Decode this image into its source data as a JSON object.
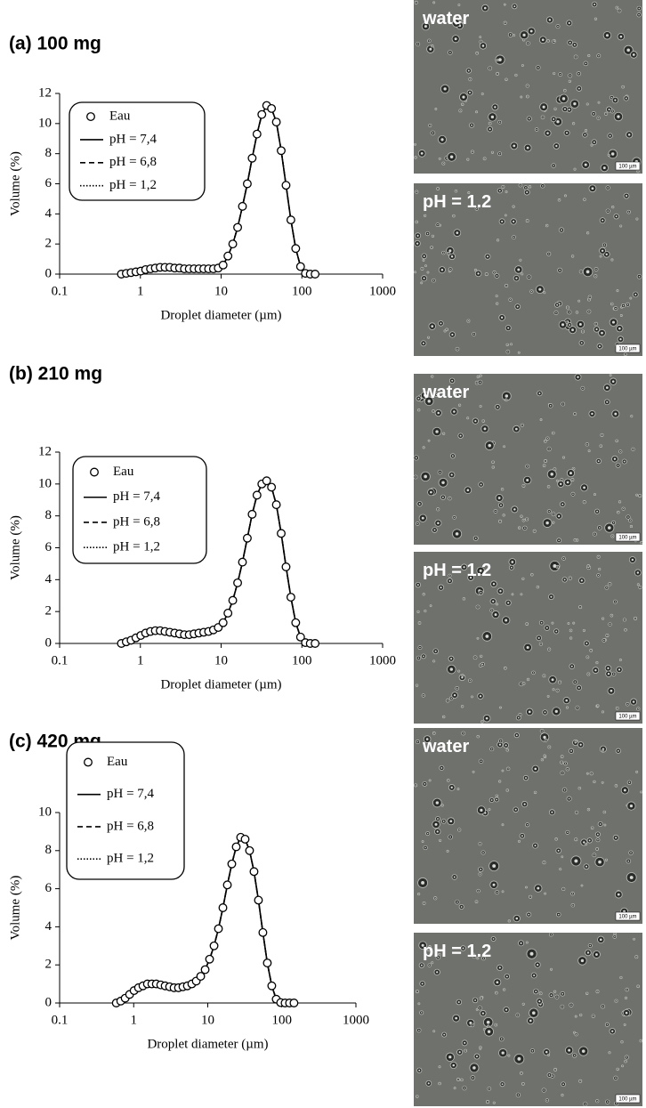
{
  "chart_data": [
    {
      "type": "line",
      "title": "(a) 100 mg",
      "x_label": "Droplet diameter (µm)",
      "y_label": "Volume (%)",
      "log_x": true,
      "legend": "upper left",
      "xlim": [
        0.1,
        1000
      ],
      "xticks": [
        0.1,
        1,
        10,
        100,
        1000
      ],
      "ylim": [
        0,
        12
      ],
      "yticks": [
        0,
        2,
        4,
        6,
        8,
        10,
        12
      ],
      "x": [
        0.582,
        0.669,
        0.767,
        0.881,
        1.012,
        1.162,
        1.334,
        1.531,
        1.758,
        2.018,
        2.317,
        2.66,
        3.054,
        3.506,
        4.025,
        4.621,
        5.305,
        6.09,
        6.992,
        8.027,
        9.215,
        10.58,
        12.15,
        13.94,
        16.01,
        18.38,
        21.1,
        24.22,
        27.81,
        31.93,
        36.65,
        42.08,
        48.31,
        55.46,
        63.67,
        73.1,
        83.93,
        96.35,
        110.6,
        127,
        145.8
      ],
      "series": [
        {
          "name": "Eau",
          "color": "#000000",
          "marker": "circle",
          "line_style": "none",
          "values": [
            0,
            0.05,
            0.1,
            0.15,
            0.2,
            0.3,
            0.35,
            0.4,
            0.45,
            0.45,
            0.45,
            0.4,
            0.4,
            0.35,
            0.35,
            0.35,
            0.35,
            0.35,
            0.35,
            0.35,
            0.4,
            0.6,
            1.2,
            2.0,
            3.1,
            4.5,
            6.0,
            7.7,
            9.3,
            10.6,
            11.2,
            11.0,
            10.1,
            8.2,
            5.9,
            3.6,
            1.7,
            0.5,
            0.05,
            0,
            0
          ]
        },
        {
          "name": "pH = 7,4",
          "color": "#000000",
          "marker": "none",
          "line_style": "solid",
          "values": [
            0,
            0.05,
            0.1,
            0.15,
            0.2,
            0.3,
            0.35,
            0.4,
            0.45,
            0.45,
            0.45,
            0.4,
            0.4,
            0.35,
            0.35,
            0.35,
            0.35,
            0.35,
            0.35,
            0.35,
            0.4,
            0.6,
            1.2,
            2.0,
            3.1,
            4.5,
            6.0,
            7.7,
            9.3,
            10.6,
            11.2,
            11.0,
            10.1,
            8.2,
            5.9,
            3.6,
            1.7,
            0.5,
            0.05,
            0,
            0
          ]
        },
        {
          "name": "pH = 6,8",
          "color": "#000000",
          "marker": "none",
          "line_style": "dashed",
          "values": [
            0,
            0.05,
            0.1,
            0.15,
            0.2,
            0.3,
            0.35,
            0.4,
            0.45,
            0.45,
            0.45,
            0.4,
            0.4,
            0.35,
            0.35,
            0.35,
            0.35,
            0.35,
            0.35,
            0.35,
            0.4,
            0.6,
            1.2,
            2.0,
            3.1,
            4.5,
            6.0,
            7.7,
            9.3,
            10.6,
            11.2,
            11.0,
            10.1,
            8.2,
            5.9,
            3.6,
            1.7,
            0.5,
            0.05,
            0,
            0
          ]
        },
        {
          "name": "pH = 1,2",
          "color": "#000000",
          "marker": "none",
          "line_style": "dotted",
          "values": [
            0,
            0.05,
            0.1,
            0.15,
            0.2,
            0.3,
            0.35,
            0.4,
            0.45,
            0.45,
            0.45,
            0.4,
            0.4,
            0.35,
            0.35,
            0.35,
            0.35,
            0.35,
            0.35,
            0.35,
            0.4,
            0.6,
            1.2,
            2.0,
            3.1,
            4.5,
            6.0,
            7.7,
            9.3,
            10.6,
            11.2,
            11.0,
            10.1,
            8.2,
            5.9,
            3.6,
            1.7,
            0.5,
            0.05,
            0,
            0
          ]
        }
      ]
    },
    {
      "type": "line",
      "title": "(b) 210 mg",
      "x_label": "Droplet diameter (µm)",
      "y_label": "Volume (%)",
      "log_x": true,
      "legend": "upper left",
      "xlim": [
        0.1,
        1000
      ],
      "xticks": [
        0.1,
        1,
        10,
        100,
        1000
      ],
      "ylim": [
        0,
        12
      ],
      "yticks": [
        0,
        2,
        4,
        6,
        8,
        10,
        12
      ],
      "x": [
        0.582,
        0.669,
        0.767,
        0.881,
        1.012,
        1.162,
        1.334,
        1.531,
        1.758,
        2.018,
        2.317,
        2.66,
        3.054,
        3.506,
        4.025,
        4.621,
        5.305,
        6.09,
        6.992,
        8.027,
        9.215,
        10.58,
        12.15,
        13.94,
        16.01,
        18.38,
        21.1,
        24.22,
        27.81,
        31.93,
        36.65,
        42.08,
        48.31,
        55.46,
        63.67,
        73.1,
        83.93,
        96.35,
        110.6,
        127,
        145.8
      ],
      "series": [
        {
          "name": "Eau",
          "color": "#000000",
          "marker": "circle",
          "line_style": "none",
          "values": [
            0,
            0.1,
            0.2,
            0.35,
            0.5,
            0.65,
            0.75,
            0.8,
            0.8,
            0.75,
            0.7,
            0.65,
            0.6,
            0.55,
            0.55,
            0.6,
            0.65,
            0.7,
            0.75,
            0.85,
            1.0,
            1.3,
            1.9,
            2.7,
            3.8,
            5.1,
            6.6,
            8.1,
            9.3,
            10.0,
            10.2,
            9.8,
            8.7,
            6.9,
            4.8,
            2.9,
            1.3,
            0.4,
            0.05,
            0,
            0
          ]
        },
        {
          "name": "pH = 7,4",
          "color": "#000000",
          "marker": "none",
          "line_style": "solid",
          "values": [
            0,
            0.1,
            0.2,
            0.35,
            0.5,
            0.65,
            0.75,
            0.8,
            0.8,
            0.75,
            0.7,
            0.65,
            0.6,
            0.55,
            0.55,
            0.6,
            0.65,
            0.7,
            0.75,
            0.85,
            1.0,
            1.3,
            1.9,
            2.7,
            3.8,
            5.1,
            6.6,
            8.1,
            9.3,
            10.0,
            10.2,
            9.8,
            8.7,
            6.9,
            4.8,
            2.9,
            1.3,
            0.4,
            0.05,
            0,
            0
          ]
        },
        {
          "name": "pH = 6,8",
          "color": "#000000",
          "marker": "none",
          "line_style": "dashed",
          "values": [
            0,
            0.1,
            0.2,
            0.35,
            0.5,
            0.65,
            0.75,
            0.8,
            0.8,
            0.75,
            0.7,
            0.65,
            0.6,
            0.55,
            0.55,
            0.6,
            0.65,
            0.7,
            0.75,
            0.85,
            1.0,
            1.3,
            1.9,
            2.7,
            3.8,
            5.1,
            6.6,
            8.1,
            9.3,
            10.0,
            10.2,
            9.8,
            8.7,
            6.9,
            4.8,
            2.9,
            1.3,
            0.4,
            0.05,
            0,
            0
          ]
        },
        {
          "name": "pH = 1,2",
          "color": "#000000",
          "marker": "none",
          "line_style": "dotted",
          "values": [
            0,
            0.1,
            0.2,
            0.35,
            0.5,
            0.65,
            0.75,
            0.8,
            0.8,
            0.75,
            0.7,
            0.65,
            0.6,
            0.55,
            0.55,
            0.6,
            0.65,
            0.7,
            0.75,
            0.85,
            1.0,
            1.3,
            1.9,
            2.7,
            3.8,
            5.1,
            6.6,
            8.1,
            9.3,
            10.0,
            10.2,
            9.8,
            8.7,
            6.9,
            4.8,
            2.9,
            1.3,
            0.4,
            0.05,
            0,
            0
          ]
        }
      ]
    },
    {
      "type": "line",
      "title": "(c) 420 mg",
      "x_label": "Droplet diameter (µm)",
      "y_label": "Volume (%)",
      "log_x": true,
      "legend": "upper left",
      "xlim": [
        0.1,
        1000
      ],
      "xticks": [
        0.1,
        1,
        10,
        100,
        1000
      ],
      "ylim": [
        0,
        10
      ],
      "yticks": [
        0,
        2,
        4,
        6,
        8,
        10
      ],
      "x": [
        0.582,
        0.669,
        0.767,
        0.881,
        1.012,
        1.162,
        1.334,
        1.531,
        1.758,
        2.018,
        2.317,
        2.66,
        3.054,
        3.506,
        4.025,
        4.621,
        5.305,
        6.09,
        6.992,
        8.027,
        9.215,
        10.58,
        12.15,
        13.94,
        16.01,
        18.38,
        21.1,
        24.22,
        27.81,
        31.93,
        36.65,
        42.08,
        48.31,
        55.46,
        63.67,
        73.1,
        83.93,
        96.35,
        110.6,
        127,
        145.8
      ],
      "series": [
        {
          "name": "Eau",
          "color": "#000000",
          "marker": "circle",
          "line_style": "none",
          "values": [
            0,
            0.1,
            0.25,
            0.45,
            0.65,
            0.8,
            0.9,
            1.0,
            1.0,
            1.0,
            0.95,
            0.9,
            0.85,
            0.8,
            0.8,
            0.85,
            0.9,
            1.0,
            1.15,
            1.4,
            1.75,
            2.3,
            3.0,
            3.9,
            5.0,
            6.2,
            7.3,
            8.2,
            8.7,
            8.6,
            8.0,
            6.9,
            5.4,
            3.7,
            2.1,
            0.9,
            0.2,
            0.02,
            0,
            0,
            0
          ]
        },
        {
          "name": "pH = 7,4",
          "color": "#000000",
          "marker": "none",
          "line_style": "solid",
          "values": [
            0,
            0.1,
            0.25,
            0.45,
            0.65,
            0.8,
            0.9,
            1.0,
            1.0,
            1.0,
            0.95,
            0.9,
            0.85,
            0.8,
            0.8,
            0.85,
            0.9,
            1.0,
            1.15,
            1.4,
            1.75,
            2.3,
            3.0,
            3.9,
            5.0,
            6.2,
            7.3,
            8.2,
            8.7,
            8.6,
            8.0,
            6.9,
            5.4,
            3.7,
            2.1,
            0.9,
            0.2,
            0.02,
            0,
            0,
            0
          ]
        },
        {
          "name": "pH = 6,8",
          "color": "#000000",
          "marker": "none",
          "line_style": "dashed",
          "values": [
            0,
            0.1,
            0.25,
            0.45,
            0.65,
            0.8,
            0.9,
            1.0,
            1.0,
            1.0,
            0.95,
            0.9,
            0.85,
            0.8,
            0.8,
            0.85,
            0.9,
            1.0,
            1.15,
            1.4,
            1.75,
            2.3,
            3.0,
            3.9,
            5.0,
            6.2,
            7.3,
            8.2,
            8.7,
            8.6,
            8.0,
            6.9,
            5.4,
            3.7,
            2.1,
            0.9,
            0.2,
            0.02,
            0,
            0,
            0
          ]
        },
        {
          "name": "pH = 1,2",
          "color": "#000000",
          "marker": "none",
          "line_style": "dotted",
          "values": [
            0,
            0.1,
            0.25,
            0.45,
            0.65,
            0.8,
            0.9,
            1.0,
            1.0,
            1.0,
            0.95,
            0.9,
            0.85,
            0.8,
            0.8,
            0.85,
            0.9,
            1.0,
            1.15,
            1.4,
            1.75,
            2.3,
            3.0,
            3.9,
            5.0,
            6.2,
            7.3,
            8.2,
            8.7,
            8.6,
            8.0,
            6.9,
            5.4,
            3.7,
            2.1,
            0.9,
            0.2,
            0.02,
            0,
            0,
            0
          ]
        }
      ]
    }
  ],
  "micrographs": [
    {
      "label": "water",
      "scale": "100 µm"
    },
    {
      "label": "pH = 1.2",
      "scale": "100 µm"
    },
    {
      "label": "water",
      "scale": "100 µm"
    },
    {
      "label": "pH = 1.2",
      "scale": "100 µm"
    },
    {
      "label": "water",
      "scale": "100 µm"
    },
    {
      "label": "pH = 1.2",
      "scale": "100 µm"
    }
  ]
}
